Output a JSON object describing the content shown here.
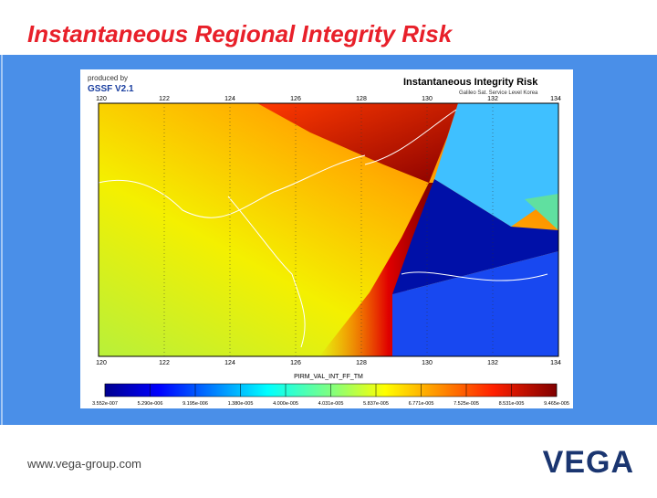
{
  "slide": {
    "title": "Instantaneous Regional Integrity Risk",
    "url": "www.vega-group.com",
    "logo": "VEGA"
  },
  "figure": {
    "produced_by": "produced by",
    "software": "GSSF V2.1",
    "title": "Instantaneous Integrity Risk",
    "subtitle": "Galileo Sat. Service Level Korea",
    "lon_ticks": [
      "120",
      "122",
      "124",
      "126",
      "128",
      "130",
      "132",
      "134"
    ],
    "variable": "PIRM_VAL_INT_FF_TM",
    "colorbar_labels": [
      "3.552e-007",
      "5.290e-006",
      "9.195e-006",
      "1.380e-005",
      "4.000e-005",
      "4.031e-005",
      "5.837e-005",
      "6.771e-005",
      "7.525e-005",
      "8.531e-005",
      "9.465e-005"
    ]
  }
}
